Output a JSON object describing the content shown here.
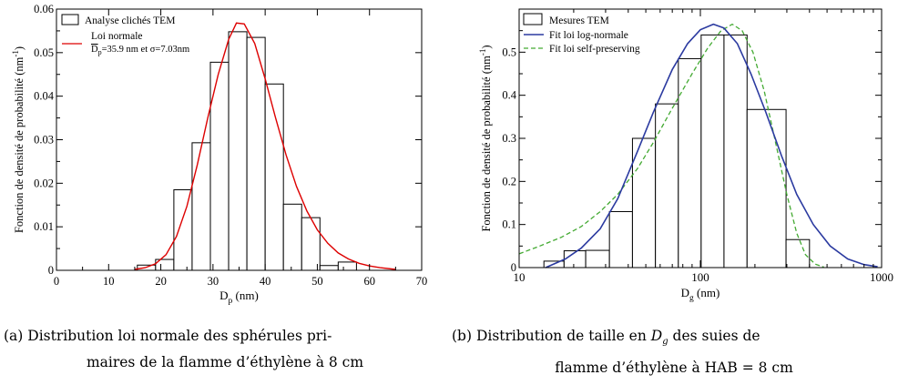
{
  "captions": {
    "a_line1": "(a) Distribution loi normale des sphérules pri-",
    "a_line2": "maires de la flamme d’éthylène à 8 cm",
    "b_line1": "(b) Distribution de taille en Dg des suies de",
    "b_line2": "flamme d’éthylène à HAB = 8 cm"
  },
  "chart_data": [
    {
      "type": "bar",
      "xlabel": "D",
      "xlabel_sub": "p",
      "xlabel_unit": " (nm)",
      "ylabel": "Fonction de densité de probabilité (nm",
      "ylabel_sup": "-1",
      "ylabel_end": ")",
      "xlim": [
        0,
        70
      ],
      "ylim": [
        0,
        0.06
      ],
      "xticks": [
        0,
        10,
        20,
        30,
        40,
        50,
        60,
        70
      ],
      "yticks": [
        0,
        0.01,
        0.02,
        0.03,
        0.04,
        0.05,
        0.06
      ],
      "ytick_labels": [
        "0",
        "0.01",
        "0.02",
        "0.03",
        "0.04",
        "0.05",
        "0.06"
      ],
      "legend": {
        "position": "top-left",
        "bars": "Analyse clichés TEM",
        "line": "Loi normale",
        "line_detail_D": "D",
        "line_detail_sub": "p",
        "line_detail_rest": "=35.9 nm et σ=7.03nm"
      },
      "bar_color": "#000000",
      "curve_color": "#dd0000",
      "bins": [
        {
          "x0": 15.5,
          "x1": 19,
          "value": 0.0012
        },
        {
          "x0": 19,
          "x1": 22.5,
          "value": 0.0025
        },
        {
          "x0": 22.5,
          "x1": 26,
          "value": 0.0185
        },
        {
          "x0": 26,
          "x1": 29.5,
          "value": 0.0293
        },
        {
          "x0": 29.5,
          "x1": 33,
          "value": 0.0478
        },
        {
          "x0": 33,
          "x1": 36.5,
          "value": 0.0548
        },
        {
          "x0": 36.5,
          "x1": 40,
          "value": 0.0535
        },
        {
          "x0": 40,
          "x1": 43.5,
          "value": 0.0428
        },
        {
          "x0": 43.5,
          "x1": 47,
          "value": 0.0152
        },
        {
          "x0": 47,
          "x1": 50.5,
          "value": 0.0121
        },
        {
          "x0": 50.5,
          "x1": 54,
          "value": 0.0011
        },
        {
          "x0": 54,
          "x1": 57.5,
          "value": 0.0019
        }
      ],
      "curve": [
        [
          15,
          0.0002
        ],
        [
          17,
          0.0006
        ],
        [
          19,
          0.0015
        ],
        [
          21,
          0.0036
        ],
        [
          23,
          0.0078
        ],
        [
          25,
          0.0147
        ],
        [
          27,
          0.0243
        ],
        [
          29,
          0.035
        ],
        [
          31,
          0.045
        ],
        [
          33,
          0.053
        ],
        [
          34.5,
          0.0568
        ],
        [
          36,
          0.0566
        ],
        [
          38,
          0.0521
        ],
        [
          40,
          0.044
        ],
        [
          42,
          0.035
        ],
        [
          44,
          0.0265
        ],
        [
          46,
          0.0193
        ],
        [
          48,
          0.0136
        ],
        [
          50,
          0.0093
        ],
        [
          52,
          0.0062
        ],
        [
          54,
          0.004
        ],
        [
          56,
          0.0026
        ],
        [
          58,
          0.0016
        ],
        [
          60,
          0.001
        ],
        [
          62,
          0.0006
        ],
        [
          65,
          0.0002
        ]
      ]
    },
    {
      "type": "bar",
      "xscale": "log",
      "xlabel": "D",
      "xlabel_sub": "g",
      "xlabel_unit": " (nm)",
      "ylabel": "Fonction de densité de probabilité (nm",
      "ylabel_sup": "-1",
      "ylabel_end": ")",
      "xlim": [
        10,
        1000
      ],
      "ylim": [
        0,
        0.6
      ],
      "xticks": [
        10,
        100,
        1000
      ],
      "yticks": [
        0,
        0.1,
        0.2,
        0.3,
        0.4,
        0.5,
        0.6
      ],
      "ytick_labels": [
        "0",
        "0.1",
        "0.2",
        "0.3",
        "0.4",
        "0.5",
        ""
      ],
      "legend": {
        "position": "top-left",
        "bars": "Mesures TEM",
        "line1": "Fit loi log-normale",
        "line2": "Fit loi self-preserving"
      },
      "bar_color": "#000000",
      "lognormal_color": "#2b3aa0",
      "selfpreserving_color": "#44aa33",
      "bins": [
        {
          "x0": 13.7,
          "x1": 17.7,
          "value": 0.015
        },
        {
          "x0": 17.7,
          "x1": 23.3,
          "value": 0.039
        },
        {
          "x0": 23.3,
          "x1": 31.5,
          "value": 0.04
        },
        {
          "x0": 31.5,
          "x1": 42.2,
          "value": 0.13
        },
        {
          "x0": 42.2,
          "x1": 56.5,
          "value": 0.3
        },
        {
          "x0": 56.5,
          "x1": 75.6,
          "value": 0.38
        },
        {
          "x0": 75.6,
          "x1": 101,
          "value": 0.485
        },
        {
          "x0": 101,
          "x1": 135,
          "value": 0.54
        },
        {
          "x0": 135,
          "x1": 181,
          "value": 0.54
        },
        {
          "x0": 181,
          "x1": 297,
          "value": 0.367
        },
        {
          "x0": 297,
          "x1": 400,
          "value": 0.065
        }
      ],
      "lognormal": [
        [
          14,
          0.0
        ],
        [
          18,
          0.02
        ],
        [
          22,
          0.045
        ],
        [
          28,
          0.09
        ],
        [
          35,
          0.16
        ],
        [
          45,
          0.27
        ],
        [
          55,
          0.36
        ],
        [
          70,
          0.46
        ],
        [
          85,
          0.52
        ],
        [
          100,
          0.552
        ],
        [
          118,
          0.565
        ],
        [
          135,
          0.556
        ],
        [
          160,
          0.52
        ],
        [
          190,
          0.45
        ],
        [
          230,
          0.36
        ],
        [
          280,
          0.26
        ],
        [
          340,
          0.17
        ],
        [
          420,
          0.1
        ],
        [
          520,
          0.05
        ],
        [
          650,
          0.02
        ],
        [
          800,
          0.007
        ],
        [
          950,
          0.002
        ]
      ],
      "selfpreserving": [
        [
          10,
          0.032
        ],
        [
          13,
          0.05
        ],
        [
          17,
          0.07
        ],
        [
          22,
          0.095
        ],
        [
          28,
          0.13
        ],
        [
          35,
          0.17
        ],
        [
          45,
          0.23
        ],
        [
          55,
          0.29
        ],
        [
          70,
          0.37
        ],
        [
          90,
          0.45
        ],
        [
          110,
          0.51
        ],
        [
          130,
          0.55
        ],
        [
          150,
          0.565
        ],
        [
          170,
          0.55
        ],
        [
          195,
          0.5
        ],
        [
          225,
          0.41
        ],
        [
          260,
          0.29
        ],
        [
          300,
          0.17
        ],
        [
          340,
          0.08
        ],
        [
          380,
          0.03
        ],
        [
          430,
          0.008
        ],
        [
          480,
          0.001
        ]
      ]
    }
  ]
}
